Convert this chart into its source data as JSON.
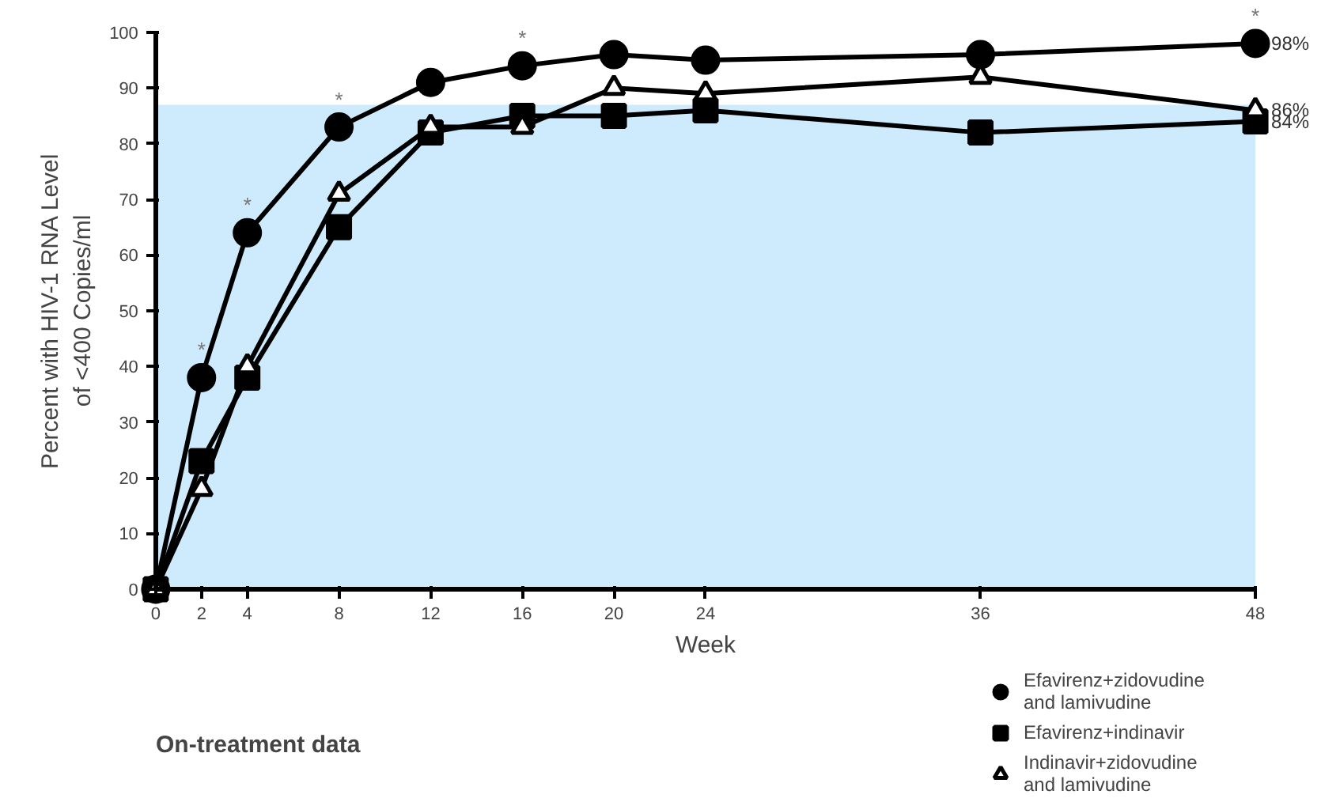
{
  "chart_data": {
    "type": "line",
    "xlabel": "Week",
    "ylabel": "Percent with HIV-1 RNA Level\nof <400 Copies/ml",
    "x": [
      0,
      2,
      4,
      8,
      12,
      16,
      20,
      24,
      36,
      48
    ],
    "xlim": [
      0,
      48
    ],
    "xticks": [
      0,
      2,
      4,
      8,
      12,
      16,
      20,
      24,
      36,
      48
    ],
    "ylim": [
      0,
      100
    ],
    "yticks": [
      0,
      10,
      20,
      30,
      40,
      50,
      60,
      70,
      80,
      90,
      100
    ],
    "grid": false,
    "legend": "bottom right",
    "line_style": "solid",
    "series": [
      {
        "name": "Efavirenz+zidovudine\nand lamivudine",
        "color": "#000000",
        "marker": "circle",
        "values": [
          0,
          38,
          64,
          83,
          91,
          94,
          96,
          95,
          96,
          98
        ],
        "value_labels": [
          null,
          null,
          null,
          null,
          null,
          null,
          null,
          null,
          null,
          "98%"
        ]
      },
      {
        "name": "Efavirenz+indinavir",
        "color": "#000000",
        "marker": "square",
        "values": [
          0,
          23,
          38,
          65,
          82,
          85,
          85,
          86,
          82,
          84
        ],
        "value_labels": [
          null,
          null,
          null,
          null,
          null,
          null,
          null,
          null,
          null,
          "84%"
        ]
      },
      {
        "name": "Indinavir+zidovudine\nand lamivudine",
        "color": "#000000",
        "marker": "triangle",
        "values": [
          0,
          18,
          40,
          71,
          83,
          83,
          90,
          89,
          92,
          86
        ],
        "value_labels": [
          null,
          null,
          null,
          null,
          null,
          null,
          null,
          null,
          null,
          "86%"
        ]
      }
    ],
    "bands": [
      {
        "axis": "y",
        "from": 0,
        "to": 87,
        "color": "#cdebfc"
      }
    ],
    "annotations": [
      {
        "text": "*",
        "x": 2,
        "y": 38
      },
      {
        "text": "*",
        "x": 4,
        "y": 64
      },
      {
        "text": "*",
        "x": 8,
        "y": 83
      },
      {
        "text": "*",
        "x": 16,
        "y": 94
      },
      {
        "text": "*",
        "x": 48,
        "y": 98
      },
      "On-treatment data"
    ]
  }
}
